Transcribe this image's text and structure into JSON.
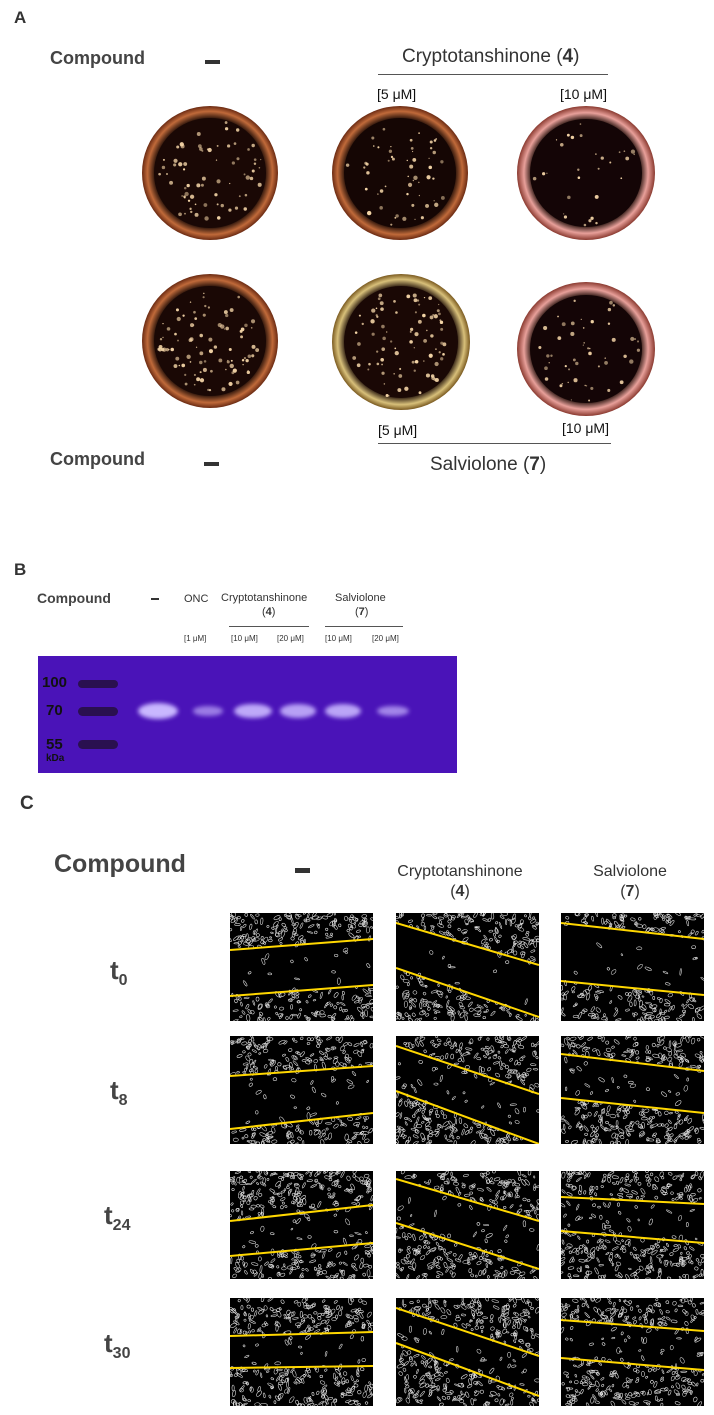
{
  "panel_a": {
    "letter": "A",
    "row1": {
      "compound_label": "Compound",
      "compound_name": "Cryptotanshinone",
      "compound_number": "4",
      "conc_low": "[5 μM]",
      "conc_high": "[10 μM]"
    },
    "row2": {
      "compound_label": "Compound",
      "compound_name": "Salviolone",
      "compound_number": "7",
      "conc_low": "[5 μM]",
      "conc_high": "[10 μM]"
    }
  },
  "panel_b": {
    "letter": "B",
    "compound_label": "Compound",
    "onc_label": "ONC",
    "onc_conc": "[1 μM]",
    "crypto_name": "Cryptotanshinone",
    "crypto_number": "4",
    "crypto_conc_low": "[10 μM]",
    "crypto_conc_high": "[20 μM]",
    "salv_name": "Salviolone",
    "salv_number": "7",
    "salv_conc_low": "[10 μM]",
    "salv_conc_high": "[20 μM]",
    "markers": [
      "100",
      "70",
      "55"
    ],
    "unit": "kDa",
    "band_intensities": [
      1.0,
      0.35,
      0.85,
      0.75,
      0.8,
      0.45
    ]
  },
  "panel_c": {
    "letter": "C",
    "compound_label": "Compound",
    "crypto_name": "Cryptotanshinone",
    "crypto_number": "4",
    "salv_name": "Salviolone",
    "salv_number": "7",
    "times": [
      {
        "t": "t",
        "sub": "0"
      },
      {
        "t": "t",
        "sub": "8"
      },
      {
        "t": "t",
        "sub": "24"
      },
      {
        "t": "t",
        "sub": "30"
      }
    ],
    "line_color": "#ffd700"
  },
  "colors": {
    "blot_bg": "#4a13b8",
    "dish_rim": "#c06a3a",
    "colony": "#f5d6a8"
  }
}
